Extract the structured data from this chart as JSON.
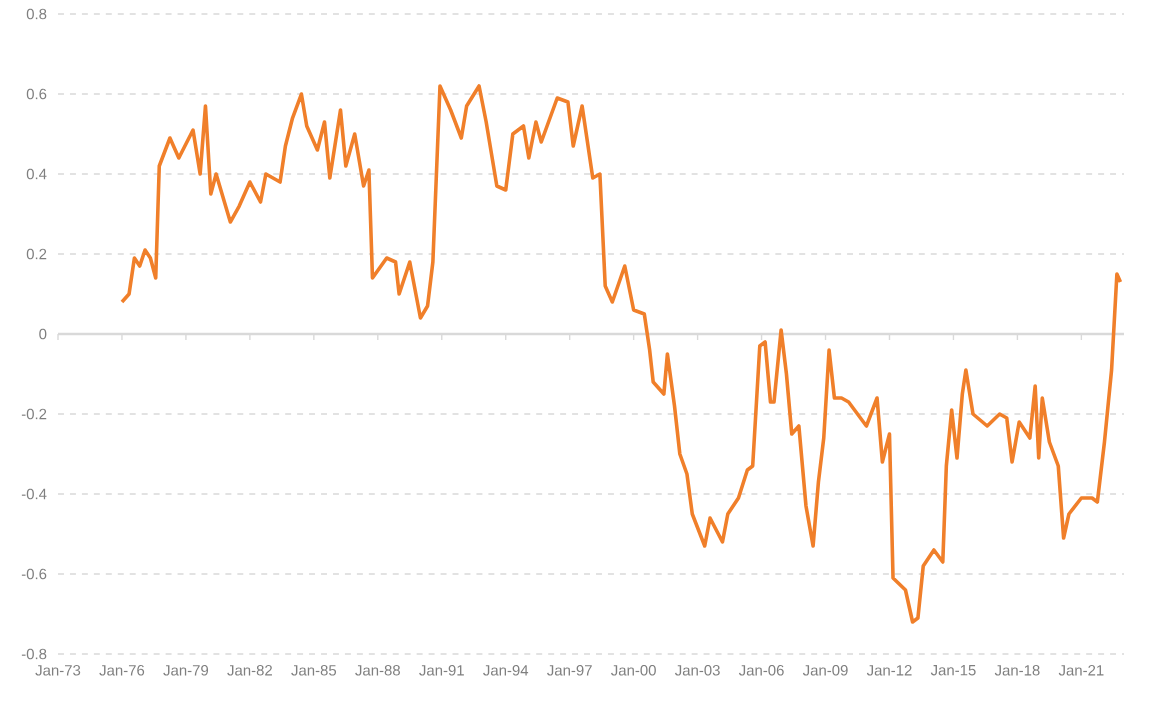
{
  "chart_data": {
    "type": "line",
    "grid": "y",
    "xlim": [
      "1973-01",
      "2023-01"
    ],
    "ylim": [
      -0.8,
      0.8
    ],
    "yticks": [
      -0.8,
      -0.6,
      -0.4,
      -0.2,
      0,
      0.2,
      0.4,
      0.6,
      0.8
    ],
    "xticks": [
      {
        "value": "1973-01",
        "label": "Jan-73"
      },
      {
        "value": "1976-01",
        "label": "Jan-76"
      },
      {
        "value": "1979-01",
        "label": "Jan-79"
      },
      {
        "value": "1982-01",
        "label": "Jan-82"
      },
      {
        "value": "1985-01",
        "label": "Jan-85"
      },
      {
        "value": "1988-01",
        "label": "Jan-88"
      },
      {
        "value": "1991-01",
        "label": "Jan-91"
      },
      {
        "value": "1994-01",
        "label": "Jan-94"
      },
      {
        "value": "1997-01",
        "label": "Jan-97"
      },
      {
        "value": "2000-01",
        "label": "Jan-00"
      },
      {
        "value": "2003-01",
        "label": "Jan-03"
      },
      {
        "value": "2006-01",
        "label": "Jan-06"
      },
      {
        "value": "2009-01",
        "label": "Jan-09"
      },
      {
        "value": "2012-01",
        "label": "Jan-12"
      },
      {
        "value": "2015-01",
        "label": "Jan-15"
      },
      {
        "value": "2018-01",
        "label": "Jan-18"
      },
      {
        "value": "2021-01",
        "label": "Jan-21"
      }
    ],
    "series": [
      {
        "color": "#f07f2a",
        "x": [
          "1976-01",
          "1976-05",
          "1976-08",
          "1976-11",
          "1977-02",
          "1977-05",
          "1977-08",
          "1977-10",
          "1978-04",
          "1978-09",
          "1979-05",
          "1979-09",
          "1979-12",
          "1980-03",
          "1980-06",
          "1981-02",
          "1981-07",
          "1982-01",
          "1982-07",
          "1982-10",
          "1983-06",
          "1983-09",
          "1984-01",
          "1984-06",
          "1984-09",
          "1985-03",
          "1985-07",
          "1985-10",
          "1986-04",
          "1986-07",
          "1986-12",
          "1987-05",
          "1987-08",
          "1987-10",
          "1988-06",
          "1988-11",
          "1989-01",
          "1989-07",
          "1990-01",
          "1990-05",
          "1990-08",
          "1990-12",
          "1991-06",
          "1991-12",
          "1992-03",
          "1992-10",
          "1993-02",
          "1993-08",
          "1994-01",
          "1994-05",
          "1994-11",
          "1995-02",
          "1995-06",
          "1995-09",
          "1996-06",
          "1996-12",
          "1997-03",
          "1997-08",
          "1998-02",
          "1998-06",
          "1998-09",
          "1999-01",
          "1999-08",
          "2000-01",
          "2000-07",
          "2000-10",
          "2000-12",
          "2001-06",
          "2001-08",
          "2001-12",
          "2002-03",
          "2002-07",
          "2002-10",
          "2003-05",
          "2003-08",
          "2004-03",
          "2004-06",
          "2004-12",
          "2005-05",
          "2005-08",
          "2005-12",
          "2006-03",
          "2006-06",
          "2006-08",
          "2006-12",
          "2007-03",
          "2007-06",
          "2007-10",
          "2008-02",
          "2008-06",
          "2008-09",
          "2008-12",
          "2009-03",
          "2009-06",
          "2009-10",
          "2010-02",
          "2010-12",
          "2011-06",
          "2011-09",
          "2012-01",
          "2012-03",
          "2012-10",
          "2013-02",
          "2013-05",
          "2013-08",
          "2014-02",
          "2014-07",
          "2014-09",
          "2014-12",
          "2015-03",
          "2015-06",
          "2015-08",
          "2015-12",
          "2016-08",
          "2017-03",
          "2017-07",
          "2017-10",
          "2018-02",
          "2018-08",
          "2018-11",
          "2019-01",
          "2019-03",
          "2019-07",
          "2019-12",
          "2020-03",
          "2020-06",
          "2021-01",
          "2021-07",
          "2021-10",
          "2022-02",
          "2022-06",
          "2022-09",
          "2022-11"
        ],
        "values": [
          0.08,
          0.1,
          0.19,
          0.17,
          0.21,
          0.19,
          0.14,
          0.42,
          0.49,
          0.44,
          0.51,
          0.4,
          0.57,
          0.35,
          0.4,
          0.28,
          0.32,
          0.38,
          0.33,
          0.4,
          0.38,
          0.47,
          0.54,
          0.6,
          0.52,
          0.46,
          0.53,
          0.39,
          0.56,
          0.42,
          0.5,
          0.37,
          0.41,
          0.14,
          0.19,
          0.18,
          0.1,
          0.18,
          0.04,
          0.07,
          0.18,
          0.62,
          0.56,
          0.49,
          0.57,
          0.62,
          0.53,
          0.37,
          0.36,
          0.5,
          0.52,
          0.44,
          0.53,
          0.48,
          0.59,
          0.58,
          0.47,
          0.57,
          0.39,
          0.4,
          0.12,
          0.08,
          0.17,
          0.06,
          0.05,
          -0.04,
          -0.12,
          -0.15,
          -0.05,
          -0.18,
          -0.3,
          -0.35,
          -0.45,
          -0.53,
          -0.46,
          -0.52,
          -0.45,
          -0.41,
          -0.34,
          -0.33,
          -0.03,
          -0.02,
          -0.17,
          -0.17,
          0.01,
          -0.1,
          -0.25,
          -0.23,
          -0.43,
          -0.53,
          -0.37,
          -0.26,
          -0.04,
          -0.16,
          -0.16,
          -0.17,
          -0.23,
          -0.16,
          -0.32,
          -0.25,
          -0.61,
          -0.64,
          -0.72,
          -0.71,
          -0.58,
          -0.54,
          -0.57,
          -0.33,
          -0.19,
          -0.31,
          -0.15,
          -0.09,
          -0.2,
          -0.23,
          -0.2,
          -0.21,
          -0.32,
          -0.22,
          -0.26,
          -0.13,
          -0.31,
          -0.16,
          -0.27,
          -0.33,
          -0.51,
          -0.45,
          -0.41,
          -0.41,
          -0.42,
          -0.27,
          -0.09,
          0.15,
          0.13
        ]
      }
    ]
  }
}
